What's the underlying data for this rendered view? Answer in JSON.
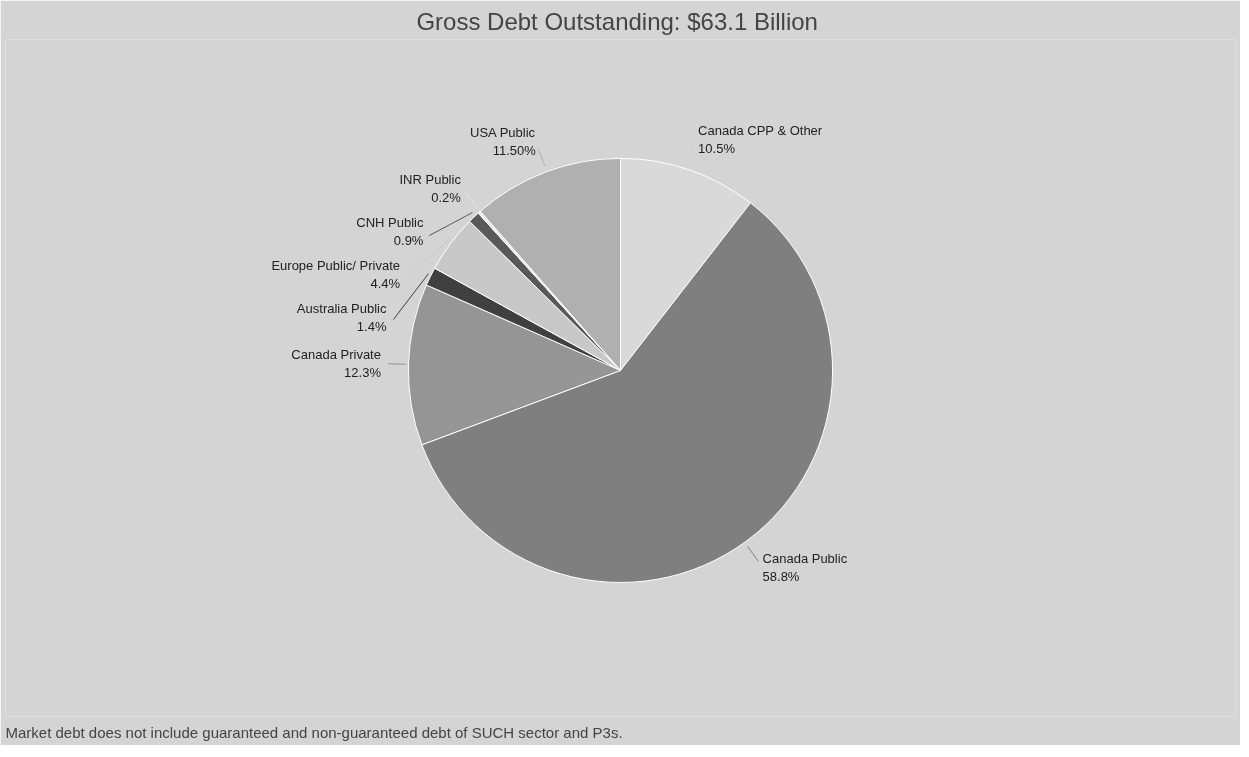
{
  "chart_data": {
    "type": "pie",
    "title": "Gross Debt Outstanding:  $63.1 Billion",
    "categories": [
      "Canada CPP & Other",
      "Canada Public",
      "Canada Private",
      "Australia Public",
      "Europe Public/ Private",
      "CNH Public",
      "INR Public",
      "USA Public"
    ],
    "values": [
      10.5,
      58.8,
      12.3,
      1.4,
      4.4,
      0.9,
      0.2,
      11.5
    ],
    "value_labels": [
      "10.5%",
      "58.8%",
      "12.3%",
      "1.4%",
      "4.4%",
      "0.9%",
      "0.2%",
      "11.50%"
    ],
    "colors": [
      "#d9d9d9",
      "#7f7f7f",
      "#959595",
      "#404040",
      "#c8c8c8",
      "#595959",
      "#e6e6e6",
      "#b0b0b0"
    ],
    "legend": false,
    "annotations": [
      "Market debt does not include guaranteed and non-guaranteed debt of SUCH sector and P3s."
    ]
  }
}
